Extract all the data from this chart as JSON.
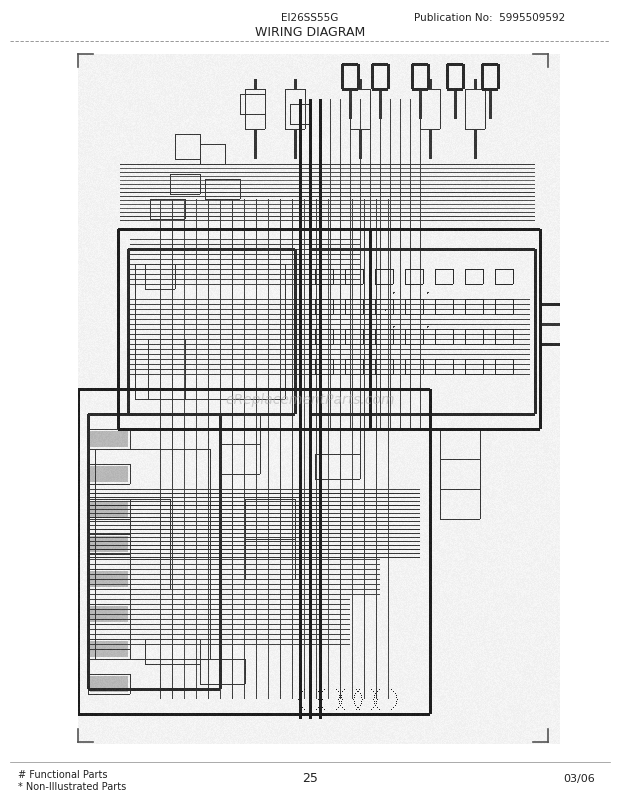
{
  "title_model": "EI26SS55G",
  "title_pub": "Publication No:  5995509592",
  "title_diagram": "WIRING DIAGRAM",
  "page_number": "25",
  "date": "03/06",
  "footer_left_line1": "# Functional Parts",
  "footer_left_line2": "* Non-Illustrated Parts",
  "bg_color": "#ffffff",
  "text_color": "#222222",
  "watermark_text": "eReplacementParts.com",
  "page_width": 6.2,
  "page_height": 8.03,
  "dpi": 100
}
